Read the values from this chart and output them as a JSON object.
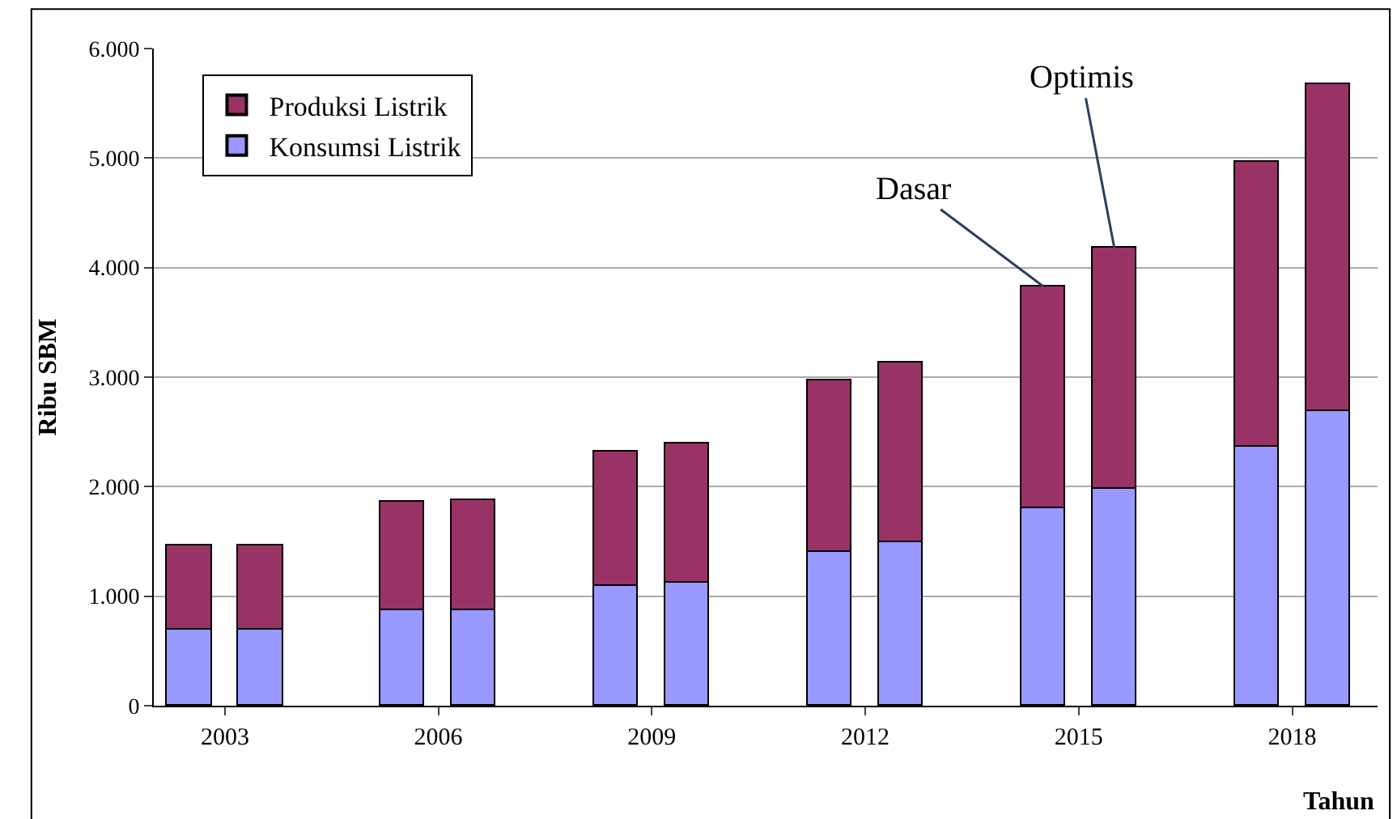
{
  "chart_data": {
    "type": "bar",
    "stacked": true,
    "xlabel": "Tahun",
    "ylabel": "Ribu SBM",
    "xlim": [
      2002,
      2019.2
    ],
    "xticks": [
      2003,
      2006,
      2009,
      2012,
      2015,
      2018
    ],
    "ylim": [
      0,
      6000
    ],
    "yticks": [
      0,
      {
        "value": 1000,
        "label": "1.000"
      },
      {
        "value": 2000,
        "label": "2.000"
      },
      {
        "value": 3000,
        "label": "3.000"
      },
      {
        "value": 4000,
        "label": "4.000"
      },
      {
        "value": 5000,
        "label": "5.000"
      },
      {
        "value": 6000,
        "label": "6.000"
      }
    ],
    "series": [
      {
        "name": "Konsumsi Listrik",
        "color": "#9999ff",
        "x": [
          2002.5,
          2003.5,
          2005.5,
          2006.5,
          2008.5,
          2009.5,
          2011.5,
          2012.5,
          2014.5,
          2015.5,
          2017.5,
          2018.5
        ],
        "values": [
          690,
          690,
          870,
          870,
          1090,
          1120,
          1410,
          1490,
          1810,
          1980,
          2360,
          2690
        ]
      },
      {
        "name": "Produksi Listrik",
        "color": "#993366",
        "x": [
          2002.5,
          2003.5,
          2005.5,
          2006.5,
          2008.5,
          2009.5,
          2011.5,
          2012.5,
          2014.5,
          2015.5,
          2017.5,
          2018.5
        ],
        "values": [
          770,
          770,
          990,
          1010,
          1230,
          1270,
          1560,
          1640,
          2020,
          2200,
          2610,
          2980
        ]
      }
    ],
    "annotations": [
      {
        "text": "Dasar",
        "x": 2014.5,
        "y": 3830
      },
      {
        "text": "Optimis",
        "x": 2015.5,
        "y": 4180
      }
    ],
    "grid": "y",
    "legend": "top left"
  }
}
